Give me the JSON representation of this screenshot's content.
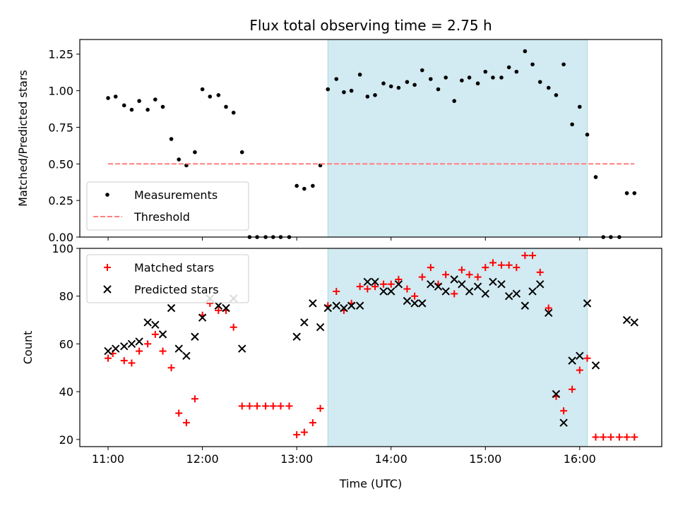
{
  "figure": {
    "title": "Flux total observing time = 2.75 h",
    "xlabel": "Time (UTC)",
    "x_ticks": [
      {
        "value": 11.0,
        "label": "11:00"
      },
      {
        "value": 12.0,
        "label": "12:00"
      },
      {
        "value": 13.0,
        "label": "13:00"
      },
      {
        "value": 14.0,
        "label": "14:00"
      },
      {
        "value": 15.0,
        "label": "15:00"
      },
      {
        "value": 16.0,
        "label": "16:00"
      }
    ],
    "xlim": [
      10.7,
      16.87
    ],
    "shaded_span": {
      "x0": 13.33,
      "x1": 16.08,
      "color": "#add8e6"
    }
  },
  "chart_data": [
    {
      "type": "scatter",
      "ylabel": "Matched/Predicted stars",
      "ylim": [
        0.0,
        1.35
      ],
      "y_ticks": [
        {
          "value": 0.0,
          "label": "0.00"
        },
        {
          "value": 0.25,
          "label": "0.25"
        },
        {
          "value": 0.5,
          "label": "0.50"
        },
        {
          "value": 0.75,
          "label": "0.75"
        },
        {
          "value": 1.0,
          "label": "1.00"
        },
        {
          "value": 1.25,
          "label": "1.25"
        }
      ],
      "legend_position": "lower-left",
      "series": [
        {
          "name": "Measurements",
          "marker": "dot",
          "color": "#000000",
          "x": [
            11.0,
            11.08,
            11.17,
            11.25,
            11.33,
            11.42,
            11.5,
            11.58,
            11.67,
            11.75,
            11.83,
            11.92,
            12.0,
            12.08,
            12.17,
            12.25,
            12.33,
            12.42,
            12.5,
            12.58,
            12.67,
            12.75,
            12.83,
            12.92,
            13.0,
            13.08,
            13.17,
            13.25,
            13.33,
            13.42,
            13.5,
            13.58,
            13.67,
            13.75,
            13.83,
            13.92,
            14.0,
            14.08,
            14.17,
            14.25,
            14.33,
            14.42,
            14.5,
            14.58,
            14.67,
            14.75,
            14.83,
            14.92,
            15.0,
            15.08,
            15.17,
            15.25,
            15.33,
            15.42,
            15.5,
            15.58,
            15.67,
            15.75,
            15.83,
            15.92,
            16.0,
            16.08,
            16.17,
            16.25,
            16.33,
            16.42,
            16.5,
            16.58
          ],
          "y": [
            0.95,
            0.96,
            0.9,
            0.87,
            0.93,
            0.87,
            0.94,
            0.89,
            0.67,
            0.53,
            0.49,
            0.58,
            1.01,
            0.96,
            0.97,
            0.89,
            0.85,
            0.58,
            0.0,
            0.0,
            0.0,
            0.0,
            0.0,
            0.0,
            0.35,
            0.33,
            0.35,
            0.49,
            1.01,
            1.08,
            0.99,
            1.0,
            1.11,
            0.96,
            0.97,
            1.05,
            1.03,
            1.02,
            1.06,
            1.04,
            1.14,
            1.08,
            1.01,
            1.09,
            0.93,
            1.07,
            1.09,
            1.05,
            1.13,
            1.09,
            1.09,
            1.16,
            1.13,
            1.27,
            1.18,
            1.06,
            1.02,
            0.97,
            1.18,
            0.77,
            0.89,
            0.7,
            0.41,
            0.0,
            0.0,
            0.0,
            0.3,
            0.3
          ]
        },
        {
          "name": "Threshold",
          "marker": "dashed-line",
          "color": "#ff7f7f",
          "x": [
            11.0,
            16.58
          ],
          "y": [
            0.5,
            0.5
          ]
        }
      ]
    },
    {
      "type": "scatter",
      "ylabel": "Count",
      "ylim": [
        17,
        100
      ],
      "y_ticks": [
        {
          "value": 20,
          "label": "20"
        },
        {
          "value": 40,
          "label": "40"
        },
        {
          "value": 60,
          "label": "60"
        },
        {
          "value": 80,
          "label": "80"
        },
        {
          "value": 100,
          "label": "100"
        }
      ],
      "legend_position": "upper-left",
      "series": [
        {
          "name": "Matched stars",
          "marker": "plus",
          "color": "#ff0000",
          "x": [
            11.0,
            11.05,
            11.17,
            11.25,
            11.33,
            11.42,
            11.5,
            11.58,
            11.67,
            11.75,
            11.83,
            11.92,
            12.0,
            12.08,
            12.17,
            12.25,
            12.33,
            12.42,
            12.5,
            12.58,
            12.67,
            12.75,
            12.83,
            12.92,
            13.0,
            13.08,
            13.17,
            13.25,
            13.33,
            13.42,
            13.5,
            13.58,
            13.67,
            13.75,
            13.83,
            13.92,
            14.0,
            14.08,
            14.17,
            14.25,
            14.33,
            14.42,
            14.5,
            14.58,
            14.67,
            14.75,
            14.83,
            14.92,
            15.0,
            15.08,
            15.17,
            15.25,
            15.33,
            15.42,
            15.5,
            15.58,
            15.67,
            15.75,
            15.83,
            15.92,
            16.0,
            16.08,
            16.17,
            16.25,
            16.33,
            16.42,
            16.5,
            16.58
          ],
          "y": [
            54,
            56,
            53,
            52,
            57,
            60,
            64,
            57,
            50,
            31,
            27,
            37,
            72,
            77,
            74,
            74,
            67,
            34,
            34,
            34,
            34,
            34,
            34,
            34,
            22,
            23,
            27,
            33,
            76,
            82,
            74,
            77,
            84,
            83,
            84,
            85,
            85,
            87,
            83,
            80,
            88,
            92,
            85,
            89,
            81,
            91,
            89,
            88,
            92,
            94,
            93,
            93,
            92,
            97,
            97,
            90,
            75,
            38,
            32,
            41,
            49,
            54,
            21,
            21,
            21,
            21,
            21,
            21
          ]
        },
        {
          "name": "Predicted stars",
          "marker": "x",
          "color": "#000000",
          "x": [
            11.0,
            11.08,
            11.17,
            11.25,
            11.33,
            11.42,
            11.5,
            11.58,
            11.67,
            11.75,
            11.83,
            11.92,
            12.0,
            12.08,
            12.17,
            12.25,
            12.33,
            12.42,
            13.0,
            13.08,
            13.17,
            13.25,
            13.33,
            13.42,
            13.5,
            13.58,
            13.67,
            13.75,
            13.83,
            13.92,
            14.0,
            14.08,
            14.17,
            14.25,
            14.33,
            14.42,
            14.5,
            14.58,
            14.67,
            14.75,
            14.83,
            14.92,
            15.0,
            15.08,
            15.17,
            15.25,
            15.33,
            15.42,
            15.5,
            15.58,
            15.67,
            15.75,
            15.83,
            15.92,
            16.0,
            16.08,
            16.17,
            16.5,
            16.58
          ],
          "y": [
            57,
            58,
            59,
            60,
            61,
            69,
            68,
            64,
            75,
            58,
            55,
            63,
            71,
            79,
            76,
            75,
            79,
            58,
            63,
            69,
            77,
            67,
            75,
            76,
            75,
            76,
            76,
            86,
            86,
            82,
            82,
            85,
            78,
            77,
            77,
            85,
            84,
            82,
            87,
            85,
            82,
            84,
            81,
            86,
            85,
            80,
            81,
            76,
            82,
            85,
            73,
            39,
            27,
            53,
            55,
            77,
            51,
            70,
            69
          ]
        }
      ]
    }
  ]
}
